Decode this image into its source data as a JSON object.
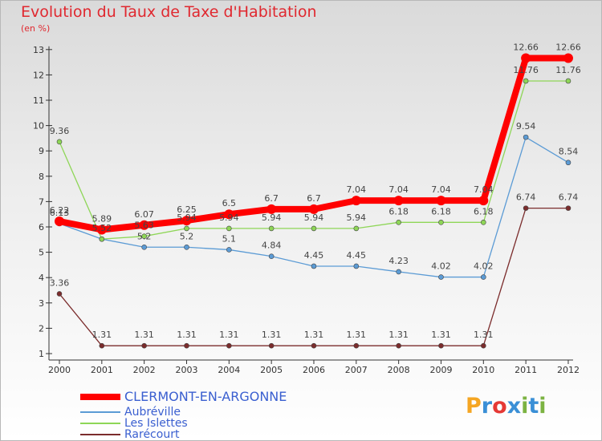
{
  "title": "Evolution du Taux de Taxe d'Habitation",
  "unit": "(en %)",
  "logo": "Proxiti",
  "logo_colors": [
    "#f5a623",
    "#3a8fd6",
    "#e53935",
    "#3a8fd6",
    "#7cb342",
    "#3a8fd6",
    "#7cb342"
  ],
  "chart_data": {
    "type": "line",
    "title": "Evolution du Taux de Taxe d'Habitation",
    "ylabel": "(en %)",
    "xlabel": "",
    "x": [
      "2000",
      "2001",
      "2002",
      "2003",
      "2004",
      "2005",
      "2006",
      "2007",
      "2008",
      "2009",
      "2010",
      "2011",
      "2012"
    ],
    "yticks": [
      "1",
      "2",
      "3",
      "4",
      "5",
      "6",
      "7",
      "8",
      "9",
      "10",
      "11",
      "12",
      "13"
    ],
    "ylim": [
      1,
      13
    ],
    "grid": false,
    "legend_position": "bottom-left",
    "series": [
      {
        "name": "CLERMONT-EN-ARGONNE",
        "color": "#ff0000",
        "emphasis": true,
        "values": [
          6.22,
          5.89,
          6.07,
          6.25,
          6.5,
          6.7,
          6.7,
          7.04,
          7.04,
          7.04,
          7.04,
          12.66,
          12.66
        ],
        "labels": [
          "6.22",
          "5.89",
          "6.07",
          "6.25",
          "6.5",
          "6.7",
          "6.7",
          "7.04",
          "7.04",
          "7.04",
          "7.04",
          "12.66",
          "12.66"
        ]
      },
      {
        "name": "Aubréville",
        "color": "#5b9bd5",
        "values": [
          6.13,
          5.52,
          5.2,
          5.2,
          5.1,
          4.84,
          4.45,
          4.45,
          4.23,
          4.02,
          4.02,
          9.54,
          8.54
        ],
        "labels": [
          "6.13",
          "5.52",
          "5.2",
          "5.2",
          "5.1",
          "4.84",
          "4.45",
          "4.45",
          "4.23",
          "4.02",
          "4.02",
          "9.54",
          "8.54"
        ]
      },
      {
        "name": "Les Islettes",
        "color": "#8ed657",
        "values": [
          9.36,
          5.52,
          5.63,
          5.94,
          5.94,
          5.94,
          5.94,
          5.94,
          6.18,
          6.18,
          6.18,
          11.76,
          11.76
        ],
        "labels": [
          "9.36",
          "",
          "5.63",
          "5.94",
          "5.94",
          "5.94",
          "5.94",
          "5.94",
          "6.18",
          "6.18",
          "6.18",
          "11.76",
          "11.76"
        ]
      },
      {
        "name": "Rarécourt",
        "color": "#7b2c2c",
        "values": [
          3.36,
          1.31,
          1.31,
          1.31,
          1.31,
          1.31,
          1.31,
          1.31,
          1.31,
          1.31,
          1.31,
          6.74,
          6.74
        ],
        "labels": [
          "3.36",
          "1.31",
          "1.31",
          "1.31",
          "1.31",
          "1.31",
          "1.31",
          "1.31",
          "1.31",
          "1.31",
          "1.31",
          "6.74",
          "6.74"
        ]
      }
    ]
  }
}
